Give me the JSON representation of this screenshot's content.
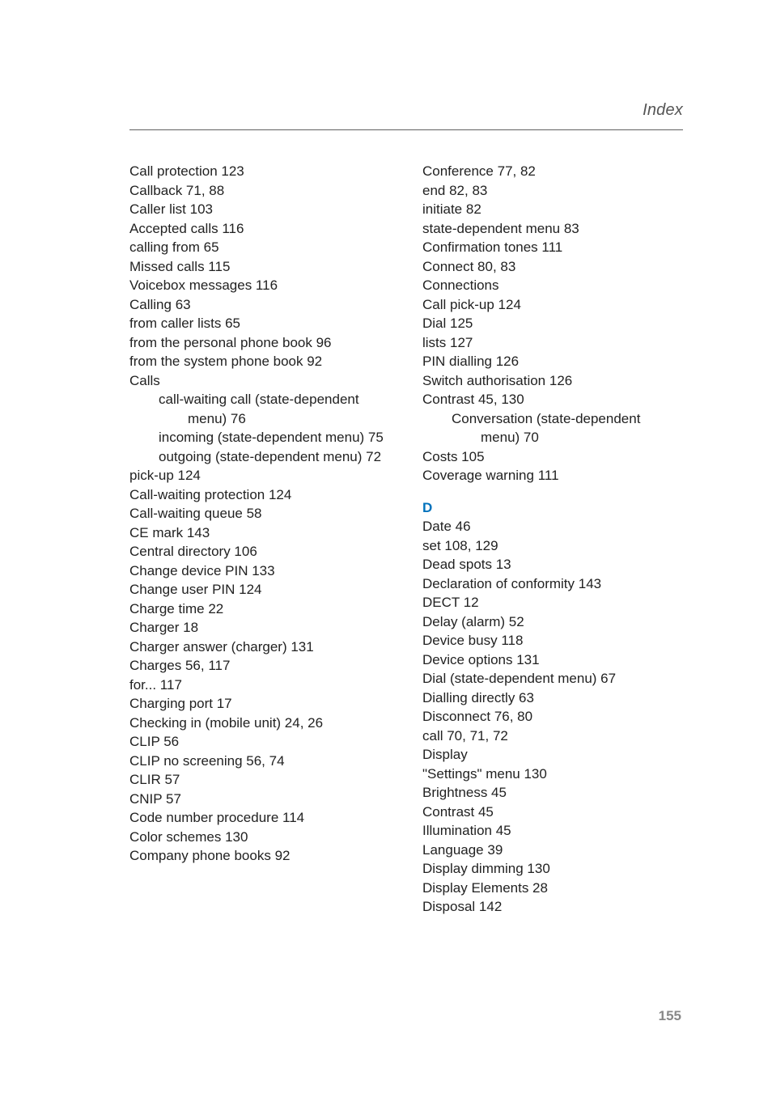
{
  "running_head": "Index",
  "page_number": "155",
  "section_letter_D": "D",
  "left_column": [
    {
      "cls": "entry",
      "text": "Call protection  123"
    },
    {
      "cls": "entry",
      "text": "Callback  71, 88"
    },
    {
      "cls": "entry",
      "text": "Caller list  103"
    },
    {
      "cls": "entry sub",
      "text": "Accepted calls  116"
    },
    {
      "cls": "entry sub",
      "text": "calling from  65"
    },
    {
      "cls": "entry sub",
      "text": "Missed calls  115"
    },
    {
      "cls": "entry sub",
      "text": "Voicebox messages  116"
    },
    {
      "cls": "entry",
      "text": "Calling  63"
    },
    {
      "cls": "entry sub",
      "text": "from caller lists  65"
    },
    {
      "cls": "entry sub",
      "text": "from the personal phone book  96"
    },
    {
      "cls": "entry sub",
      "text": "from the system phone book  92"
    },
    {
      "cls": "entry",
      "text": "Calls"
    },
    {
      "cls": "subsub",
      "text": "call-waiting call (state-dependent menu)  76"
    },
    {
      "cls": "subsub",
      "text": "incoming (state-dependent menu)  75"
    },
    {
      "cls": "subsub",
      "text": "outgoing (state-dependent menu)  72"
    },
    {
      "cls": "entry sub",
      "text": "pick-up  124"
    },
    {
      "cls": "entry",
      "text": "Call-waiting protection  124"
    },
    {
      "cls": "entry",
      "text": "Call-waiting queue  58"
    },
    {
      "cls": "entry",
      "text": "CE mark  143"
    },
    {
      "cls": "entry",
      "text": "Central directory  106"
    },
    {
      "cls": "entry",
      "text": "Change device PIN  133"
    },
    {
      "cls": "entry",
      "text": "Change user PIN  124"
    },
    {
      "cls": "entry",
      "text": "Charge time  22"
    },
    {
      "cls": "entry",
      "text": "Charger  18"
    },
    {
      "cls": "entry",
      "text": "Charger answer (charger)  131"
    },
    {
      "cls": "entry",
      "text": "Charges  56, 117"
    },
    {
      "cls": "entry sub",
      "text": "for...  117"
    },
    {
      "cls": "entry",
      "text": "Charging port  17"
    },
    {
      "cls": "entry",
      "text": "Checking in (mobile unit)  24, 26"
    },
    {
      "cls": "entry",
      "text": "CLIP  56"
    },
    {
      "cls": "entry",
      "text": "CLIP no screening  56, 74"
    },
    {
      "cls": "entry",
      "text": "CLIR  57"
    },
    {
      "cls": "entry",
      "text": "CNIP  57"
    },
    {
      "cls": "entry",
      "text": "Code number procedure  114"
    },
    {
      "cls": "entry",
      "text": "Color schemes  130"
    },
    {
      "cls": "entry",
      "text": "Company phone books  92"
    }
  ],
  "right_column_top": [
    {
      "cls": "entry",
      "text": "Conference  77, 82"
    },
    {
      "cls": "entry sub",
      "text": "end  82, 83"
    },
    {
      "cls": "entry sub",
      "text": "initiate  82"
    },
    {
      "cls": "entry sub",
      "text": "state-dependent menu  83"
    },
    {
      "cls": "entry",
      "text": "Confirmation tones  111"
    },
    {
      "cls": "entry",
      "text": "Connect  80, 83"
    },
    {
      "cls": "entry",
      "text": "Connections"
    },
    {
      "cls": "entry sub",
      "text": "Call pick-up  124"
    },
    {
      "cls": "entry sub",
      "text": "Dial  125"
    },
    {
      "cls": "entry sub",
      "text": "lists  127"
    },
    {
      "cls": "entry sub",
      "text": "PIN dialling  126"
    },
    {
      "cls": "entry sub",
      "text": "Switch authorisation  126"
    },
    {
      "cls": "entry",
      "text": "Contrast  45, 130"
    },
    {
      "cls": "subsub",
      "text": "Conversation (state-dependent menu)  70"
    },
    {
      "cls": "entry",
      "text": "Costs  105"
    },
    {
      "cls": "entry",
      "text": "Coverage warning  111"
    }
  ],
  "right_column_D": [
    {
      "cls": "entry",
      "text": "Date  46"
    },
    {
      "cls": "entry sub",
      "text": "set  108, 129"
    },
    {
      "cls": "entry",
      "text": "Dead spots  13"
    },
    {
      "cls": "entry",
      "text": "Declaration of conformity  143"
    },
    {
      "cls": "entry",
      "text": "DECT  12"
    },
    {
      "cls": "entry",
      "text": "Delay (alarm)  52"
    },
    {
      "cls": "entry",
      "text": "Device busy  118"
    },
    {
      "cls": "entry",
      "text": "Device options  131"
    },
    {
      "cls": "entry",
      "text": "Dial (state-dependent menu)  67"
    },
    {
      "cls": "entry",
      "text": "Dialling directly  63"
    },
    {
      "cls": "entry",
      "text": "Disconnect  76, 80"
    },
    {
      "cls": "entry sub",
      "text": "call  70, 71, 72"
    },
    {
      "cls": "entry",
      "text": "Display"
    },
    {
      "cls": "entry sub",
      "text": "\"Settings\" menu  130"
    },
    {
      "cls": "entry sub",
      "text": "Brightness  45"
    },
    {
      "cls": "entry sub",
      "text": "Contrast  45"
    },
    {
      "cls": "entry sub",
      "text": "Illumination  45"
    },
    {
      "cls": "entry sub",
      "text": "Language  39"
    },
    {
      "cls": "entry",
      "text": "Display dimming  130"
    },
    {
      "cls": "entry",
      "text": "Display Elements  28"
    },
    {
      "cls": "entry",
      "text": "Disposal  142"
    }
  ]
}
